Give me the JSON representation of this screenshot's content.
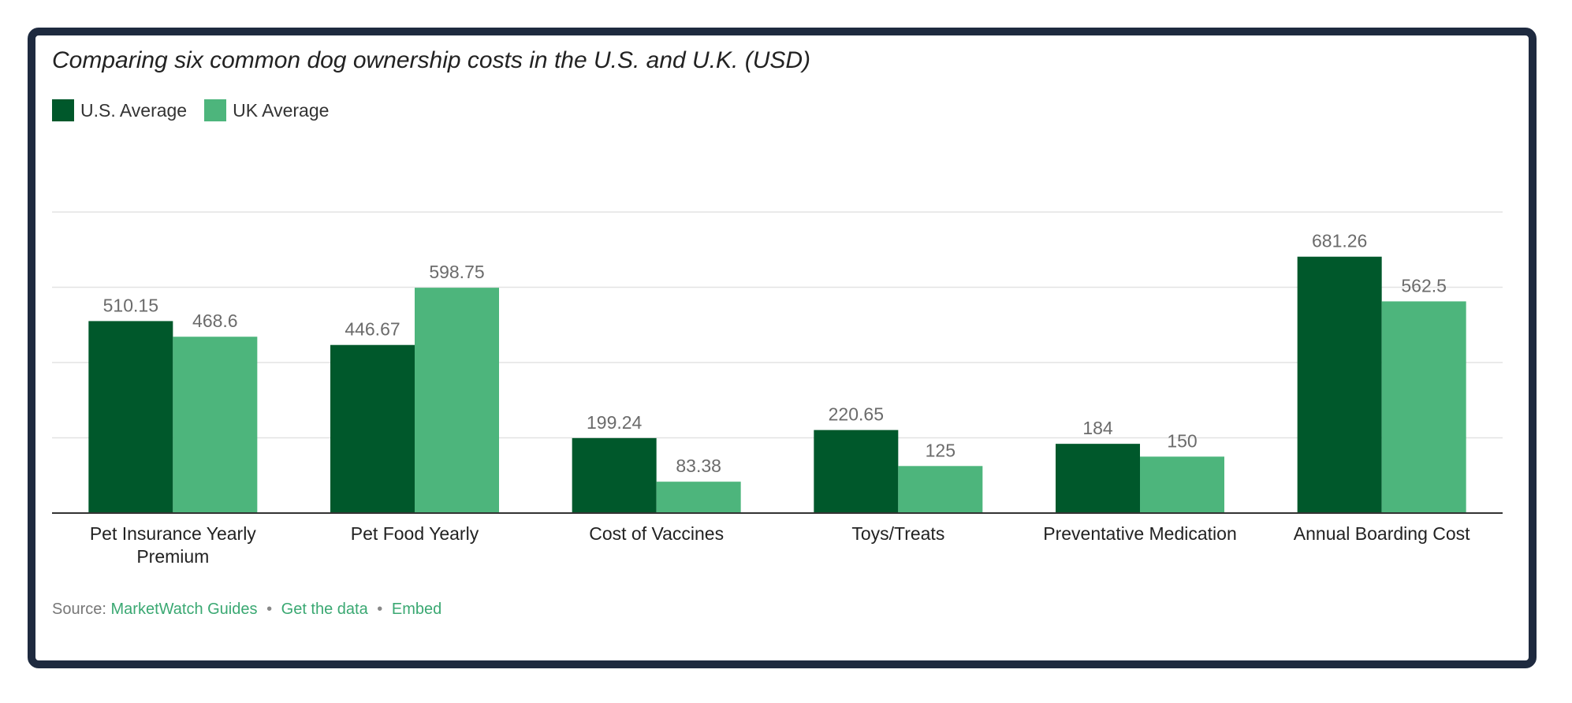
{
  "source": {
    "prefix": "Source:",
    "source_link": "MarketWatch Guides",
    "separator": "•",
    "get_data_link": "Get the data",
    "embed_link": "Embed"
  },
  "colors": {
    "us": "#00582b",
    "uk": "#4db57c",
    "frame": "#1e2a3f",
    "grid": "#e3e3e3",
    "axis": "#333333"
  },
  "chart_data": {
    "type": "bar",
    "title": "Comparing six common dog ownership costs in the U.S. and U.K. (USD)",
    "xlabel": "",
    "ylabel": "",
    "ylim": [
      0,
      900
    ],
    "grid": true,
    "legend": "top-left",
    "categories": [
      [
        "Pet Insurance Yearly",
        "Premium"
      ],
      [
        "Pet Food Yearly"
      ],
      [
        "Cost of Vaccines"
      ],
      [
        "Toys/Treats"
      ],
      [
        "Preventative Medication"
      ],
      [
        "Annual Boarding Cost"
      ]
    ],
    "series": [
      {
        "name": "U.S. Average",
        "values": [
          510.15,
          446.67,
          199.24,
          220.65,
          184,
          681.26
        ],
        "labels": [
          "510.15",
          "446.67",
          "199.24",
          "220.65",
          "184",
          "681.26"
        ]
      },
      {
        "name": "UK Average",
        "values": [
          468.6,
          598.75,
          83.38,
          125,
          150,
          562.5
        ],
        "labels": [
          "468.6",
          "598.75",
          "83.38",
          "125",
          "150",
          "562.5"
        ]
      }
    ]
  }
}
